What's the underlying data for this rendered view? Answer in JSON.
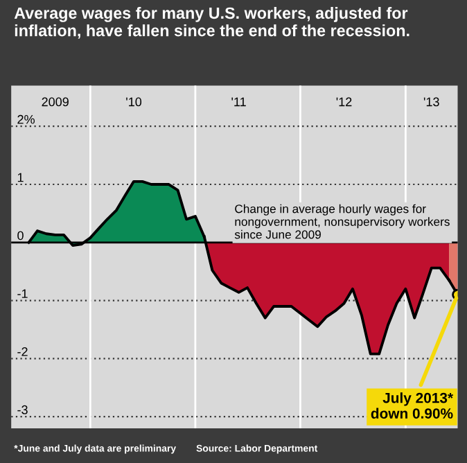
{
  "chart_data": {
    "type": "area",
    "title": "Average wages for many U.S. workers, adjusted for inflation, have fallen since the end of the recession.",
    "series": [
      {
        "color": "#0a8a55",
        "x": [
          "2009-06",
          "2009-07",
          "2009-08",
          "2009-09",
          "2009-10",
          "2009-11",
          "2009-12",
          "2010-01",
          "2010-02",
          "2010-03",
          "2010-04",
          "2010-05",
          "2010-06",
          "2010-07",
          "2010-08",
          "2010-09",
          "2010-10",
          "2010-11",
          "2010-12",
          "2011-01",
          "2011-02"
        ],
        "values": [
          0,
          0.2,
          0.15,
          0.13,
          0.13,
          -0.05,
          -0.03,
          0.08,
          0.25,
          0.4,
          0.55,
          0.8,
          1.05,
          1.05,
          1.0,
          1.0,
          1.0,
          0.9,
          0.4,
          0.45,
          0.1
        ]
      },
      {
        "color": "#c0102f",
        "x": [
          "2011-02",
          "2011-03",
          "2011-04",
          "2011-05",
          "2011-06",
          "2011-07",
          "2011-08",
          "2011-09",
          "2011-10",
          "2011-11",
          "2011-12",
          "2012-01",
          "2012-02",
          "2012-03",
          "2012-04",
          "2012-05",
          "2012-06",
          "2012-07",
          "2012-08",
          "2012-09",
          "2012-10",
          "2012-11",
          "2012-12",
          "2013-01",
          "2013-02",
          "2013-03",
          "2013-04",
          "2013-05",
          "2013-06"
        ],
        "values": [
          0.1,
          -0.48,
          -0.7,
          -0.78,
          -0.86,
          -0.78,
          -1.05,
          -1.3,
          -1.1,
          -1.1,
          -1.1,
          -1.22,
          -1.34,
          -1.45,
          -1.28,
          -1.18,
          -1.05,
          -0.8,
          -1.25,
          -1.92,
          -1.92,
          -1.42,
          -1.05,
          -0.8,
          -1.3,
          -0.9,
          -0.44,
          -0.44,
          -0.65
        ]
      },
      {
        "color": "#e2786a",
        "x": [
          "2013-06",
          "2013-07"
        ],
        "values": [
          -0.65,
          -0.9
        ]
      }
    ],
    "xlim": [
      "2009-04",
      "2013-07"
    ],
    "xticks": [
      {
        "value": "2009-09",
        "label": "2009"
      },
      {
        "value": "2010-01",
        "label": null
      },
      {
        "value": "2010-06",
        "label": "'10"
      },
      {
        "value": "2011-01",
        "label": null
      },
      {
        "value": "2011-06",
        "label": "'11"
      },
      {
        "value": "2012-01",
        "label": null
      },
      {
        "value": "2012-06",
        "label": "'12"
      },
      {
        "value": "2013-01",
        "label": null
      },
      {
        "value": "2013-04",
        "label": "'13"
      }
    ],
    "ylim": [
      -3.2,
      2.7
    ],
    "yticks": [
      {
        "value": 2,
        "label": "2%"
      },
      1,
      0,
      -1,
      -2,
      -3
    ],
    "grid": true,
    "annotations": [
      "Change in average hourly wages for nongovernment, nonsupervisory workers since June 2009",
      {
        "text": "July 2013*\ndown 0.90%",
        "x": "2013-07",
        "y": -0.9
      },
      "*June and July data are preliminary",
      "Source: Labor Department"
    ]
  }
}
